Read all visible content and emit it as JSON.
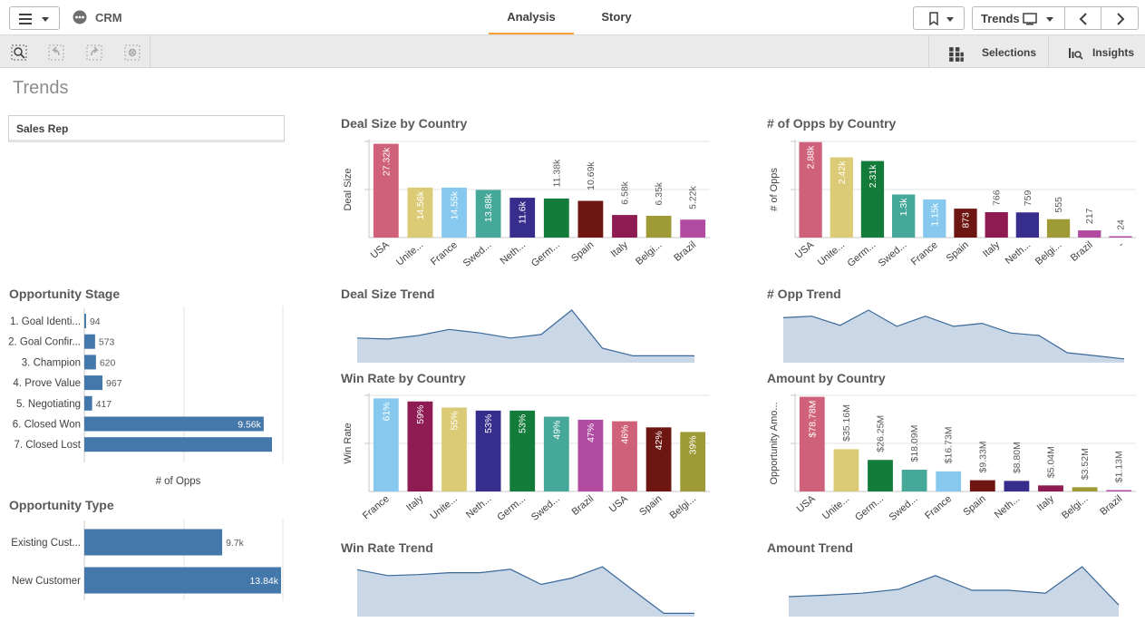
{
  "app": {
    "title": "CRM",
    "sheet_title": "Trends"
  },
  "tabs": [
    {
      "label": "Analysis"
    },
    {
      "label": "Story"
    }
  ],
  "nav": {
    "sheet_button_label": "Trends"
  },
  "toolbar": {
    "selections_label": "Selections",
    "insights_label": "Insights"
  },
  "filter": {
    "label": "Sales Rep"
  },
  "colors": {
    "accent": "#f7a23b",
    "bar_blue": "#4477aa",
    "area_fill": "#c9d7e6",
    "area_stroke": "#3a6898"
  },
  "charts": {
    "deal_size_by_country": {
      "title": "Deal Size by Country",
      "chart_data": {
        "type": "bar",
        "ylabel": "Deal Size",
        "ylim": [
          0,
          28000
        ],
        "categories": [
          "USA",
          "Unite...",
          "France",
          "Swed...",
          "Neth...",
          "Germ...",
          "Spain",
          "Italy",
          "Belgi...",
          "Brazil"
        ],
        "values": [
          27320,
          14560,
          14550,
          13880,
          11600,
          11380,
          10690,
          6580,
          6350,
          5220
        ],
        "labels": [
          "27.32k",
          "14.56k",
          "14.55k",
          "13.88k",
          "11.6k",
          "11.38k",
          "10.69k",
          "6.58k",
          "6.35k",
          "5.22k"
        ],
        "colors": [
          "#d0617a",
          "#dccb76",
          "#87c9ee",
          "#45a899",
          "#362d8d",
          "#147c3a",
          "#6e1612",
          "#8e1c53",
          "#9e9a35",
          "#b14aa1"
        ]
      }
    },
    "opps_by_country": {
      "title": "# of Opps by Country",
      "chart_data": {
        "type": "bar",
        "ylabel": "# of Opps",
        "ylim": [
          0,
          2900
        ],
        "categories": [
          "USA",
          "Unite...",
          "Germ...",
          "Swed...",
          "France",
          "Spain",
          "Italy",
          "Neth...",
          "Belgi...",
          "Brazil",
          "-"
        ],
        "values": [
          2880,
          2420,
          2310,
          1300,
          1150,
          873,
          766,
          759,
          555,
          217,
          24
        ],
        "labels": [
          "2.88k",
          "2.42k",
          "2.31k",
          "1.3k",
          "1.15k",
          "873",
          "766",
          "759",
          "555",
          "217",
          "24"
        ],
        "colors": [
          "#d0617a",
          "#dccb76",
          "#147c3a",
          "#45a899",
          "#87c9ee",
          "#6e1612",
          "#8e1c53",
          "#362d8d",
          "#9e9a35",
          "#b14aa1",
          "#b14aa1"
        ]
      }
    },
    "opportunity_stage": {
      "title": "Opportunity Stage",
      "chart_data": {
        "type": "bar",
        "orientation": "horizontal",
        "xlabel": "# of Opps",
        "xlim": [
          0,
          10000
        ],
        "categories": [
          "1. Goal Identi...",
          "2. Goal Confir...",
          "3. Champion",
          "4. Prove Value",
          "5. Negotiating",
          "6. Closed Won",
          "7. Closed Lost"
        ],
        "values": [
          94,
          573,
          620,
          967,
          417,
          9560,
          10000
        ],
        "labels": [
          "94",
          "573",
          "620",
          "967",
          "417",
          "9.56k",
          ""
        ]
      }
    },
    "opportunity_type": {
      "title": "Opportunity Type",
      "chart_data": {
        "type": "bar",
        "orientation": "horizontal",
        "xlim": [
          0,
          13840
        ],
        "categories": [
          "Existing Cust...",
          "New Customer"
        ],
        "values": [
          9700,
          13840
        ],
        "labels": [
          "9.7k",
          "13.84k"
        ]
      }
    },
    "deal_size_trend": {
      "title": "Deal Size Trend",
      "chart_data": {
        "type": "area",
        "values": [
          0.45,
          0.43,
          0.5,
          0.62,
          0.55,
          0.45,
          0.52,
          1.0,
          0.25,
          0.1,
          0.1,
          0.1
        ]
      }
    },
    "opp_trend": {
      "title": "# Opp Trend",
      "chart_data": {
        "type": "area",
        "values": [
          0.85,
          0.88,
          0.7,
          1.0,
          0.68,
          0.88,
          0.68,
          0.74,
          0.55,
          0.5,
          0.16,
          0.1,
          0.04
        ]
      }
    },
    "win_rate_by_country": {
      "title": "Win Rate by Country",
      "chart_data": {
        "type": "bar",
        "ylabel": "Win Rate",
        "ylim": [
          0,
          0.63
        ],
        "categories": [
          "France",
          "Italy",
          "Unite...",
          "Neth...",
          "Germ...",
          "Swed...",
          "Brazil",
          "USA",
          "Spain",
          "Belgi..."
        ],
        "values": [
          0.61,
          0.59,
          0.55,
          0.53,
          0.53,
          0.49,
          0.47,
          0.46,
          0.42,
          0.39
        ],
        "labels": [
          "61%",
          "59%",
          "55%",
          "53%",
          "53%",
          "49%",
          "47%",
          "46%",
          "42%",
          "39%"
        ],
        "colors": [
          "#87c9ee",
          "#8e1c53",
          "#dccb76",
          "#362d8d",
          "#147c3a",
          "#45a899",
          "#b14aa1",
          "#d0617a",
          "#6e1612",
          "#9e9a35"
        ]
      }
    },
    "amount_by_country": {
      "title": "Amount by Country",
      "chart_data": {
        "type": "bar",
        "ylabel": "Opportunity Amo...",
        "ylim": [
          0,
          80000000
        ],
        "categories": [
          "USA",
          "Unite...",
          "Germ...",
          "Swed...",
          "France",
          "Spain",
          "Neth...",
          "Italy",
          "Belgi...",
          "Brazil"
        ],
        "values": [
          78780000,
          35160000,
          26250000,
          18090000,
          16730000,
          9330000,
          8800000,
          5040000,
          3520000,
          1130000
        ],
        "labels": [
          "$78.78M",
          "$35.16M",
          "$26.25M",
          "$18.09M",
          "$16.73M",
          "$9.33M",
          "$8.80M",
          "$5.04M",
          "$3.52M",
          "$1.13M"
        ],
        "colors": [
          "#d0617a",
          "#dccb76",
          "#147c3a",
          "#45a899",
          "#87c9ee",
          "#6e1612",
          "#362d8d",
          "#8e1c53",
          "#9e9a35",
          "#b14aa1"
        ]
      }
    },
    "win_rate_trend": {
      "title": "Win Rate Trend",
      "chart_data": {
        "type": "area",
        "values": [
          0.92,
          0.8,
          0.82,
          0.86,
          0.86,
          0.93,
          0.62,
          0.75,
          0.98,
          0.5,
          0.03,
          0.03
        ]
      }
    },
    "amount_trend": {
      "title": "Amount Trend",
      "chart_data": {
        "type": "area",
        "values": [
          0.37,
          0.4,
          0.44,
          0.52,
          0.8,
          0.5,
          0.5,
          0.44,
          0.98,
          0.2
        ]
      }
    }
  }
}
